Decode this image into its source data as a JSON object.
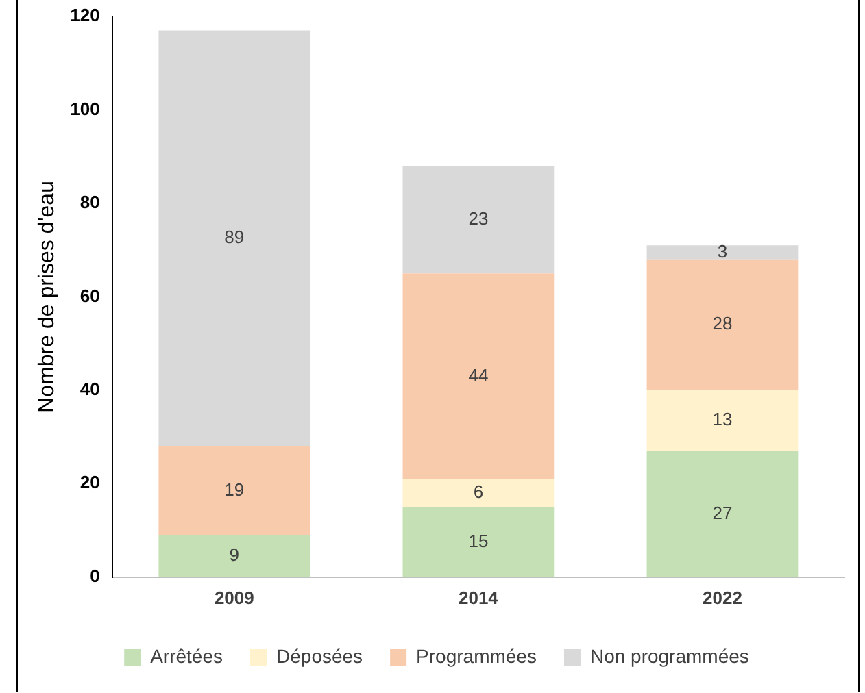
{
  "chart_data": {
    "type": "bar",
    "stacked": true,
    "ylabel": "Nombre de prises d'eau",
    "categories": [
      "2009",
      "2014",
      "2022"
    ],
    "series": [
      {
        "name": "Arrêtées",
        "color": "#c5e0b4",
        "values": [
          9,
          15,
          27
        ],
        "value_labels": [
          "9",
          "15",
          "27"
        ]
      },
      {
        "name": "Déposées",
        "color": "#fff2cc",
        "values": [
          0,
          6,
          13
        ],
        "value_labels": [
          null,
          "6",
          "13"
        ]
      },
      {
        "name": "Programmées",
        "color": "#f8cbad",
        "values": [
          19,
          44,
          28
        ],
        "value_labels": [
          "19",
          "44",
          "28"
        ]
      },
      {
        "name": "Non programmées",
        "color": "#d9d9d9",
        "values": [
          89,
          23,
          3
        ],
        "value_labels": [
          "89",
          "23",
          "3"
        ]
      }
    ],
    "ylim": [
      0,
      120
    ],
    "yticks": [
      0,
      20,
      40,
      60,
      80,
      100,
      120
    ],
    "grid": false,
    "legend": "bottom"
  }
}
